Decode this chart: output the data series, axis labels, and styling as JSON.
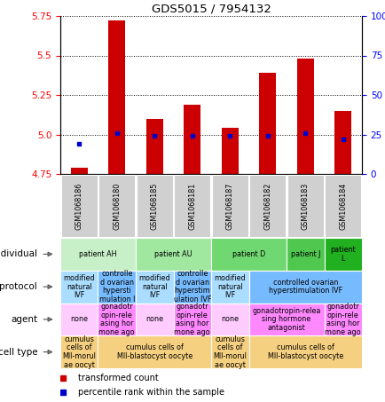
{
  "title": "GDS5015 / 7954132",
  "samples": [
    "GSM1068186",
    "GSM1068180",
    "GSM1068185",
    "GSM1068181",
    "GSM1068187",
    "GSM1068182",
    "GSM1068183",
    "GSM1068184"
  ],
  "transformed_count": [
    4.79,
    5.72,
    5.1,
    5.19,
    5.04,
    5.39,
    5.48,
    5.15
  ],
  "bar_base": 4.75,
  "percentile_values": [
    4.94,
    5.01,
    4.99,
    4.99,
    4.99,
    4.99,
    5.01,
    4.97
  ],
  "ylim": [
    4.75,
    5.75
  ],
  "y_ticks_left": [
    4.75,
    5.0,
    5.25,
    5.5,
    5.75
  ],
  "y_ticks_right_labels": [
    "0",
    "25",
    "50",
    "75",
    "100%"
  ],
  "bar_color": "#cc0000",
  "dot_color": "#0000cc",
  "individual_spans": [
    {
      "c0": 0,
      "c1": 1,
      "label": "patient AH",
      "color": "#c8f0c8"
    },
    {
      "c0": 2,
      "c1": 3,
      "label": "patient AU",
      "color": "#a0e8a0"
    },
    {
      "c0": 4,
      "c1": 5,
      "label": "patient D",
      "color": "#70d870"
    },
    {
      "c0": 6,
      "c1": 6,
      "label": "patient J",
      "color": "#50c850"
    },
    {
      "c0": 7,
      "c1": 7,
      "label": "patient\nL",
      "color": "#20b020"
    }
  ],
  "protocol_spans": [
    {
      "c0": 0,
      "c1": 0,
      "label": "modified\nnatural\nIVF",
      "color": "#aaddff"
    },
    {
      "c0": 1,
      "c1": 1,
      "label": "controlle\nd ovarian\nhypersti\nmulation I",
      "color": "#77bbff"
    },
    {
      "c0": 2,
      "c1": 2,
      "label": "modified\nnatural\nIVF",
      "color": "#aaddff"
    },
    {
      "c0": 3,
      "c1": 3,
      "label": "controlle\nd ovarian\nhyperstim\nulation IVF",
      "color": "#77bbff"
    },
    {
      "c0": 4,
      "c1": 4,
      "label": "modified\nnatural\nIVF",
      "color": "#aaddff"
    },
    {
      "c0": 5,
      "c1": 7,
      "label": "controlled ovarian\nhyperstimulation IVF",
      "color": "#77bbff"
    }
  ],
  "agent_spans": [
    {
      "c0": 0,
      "c1": 0,
      "label": "none",
      "color": "#ffccff"
    },
    {
      "c0": 1,
      "c1": 1,
      "label": "gonadotr\nopin-rele\nasing hor\nmone ago",
      "color": "#ff88ff"
    },
    {
      "c0": 2,
      "c1": 2,
      "label": "none",
      "color": "#ffccff"
    },
    {
      "c0": 3,
      "c1": 3,
      "label": "gonadotr\nopin-rele\nasing hor\nmone ago",
      "color": "#ff88ff"
    },
    {
      "c0": 4,
      "c1": 4,
      "label": "none",
      "color": "#ffccff"
    },
    {
      "c0": 5,
      "c1": 6,
      "label": "gonadotropin-relea\nsing hormone\nantagonist",
      "color": "#ff88ff"
    },
    {
      "c0": 7,
      "c1": 7,
      "label": "gonadotr\nopin-rele\nasing hor\nmone ago",
      "color": "#ff88ff"
    }
  ],
  "celltype_spans": [
    {
      "c0": 0,
      "c1": 0,
      "label": "cumulus\ncells of\nMII-morul\nae oocyt",
      "color": "#f5d080"
    },
    {
      "c0": 1,
      "c1": 3,
      "label": "cumulus cells of\nMII-blastocyst oocyte",
      "color": "#f5d080"
    },
    {
      "c0": 4,
      "c1": 4,
      "label": "cumulus\ncells of\nMII-morul\nae oocyt",
      "color": "#f5d080"
    },
    {
      "c0": 5,
      "c1": 7,
      "label": "cumulus cells of\nMII-blastocyst oocyte",
      "color": "#f5d080"
    }
  ],
  "row_labels": [
    "individual",
    "protocol",
    "agent",
    "cell type"
  ],
  "sample_bg": "#d0d0d0"
}
